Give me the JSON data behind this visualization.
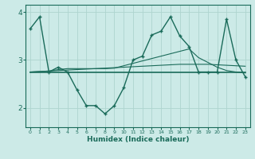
{
  "xlabel": "Humidex (Indice chaleur)",
  "bg_color": "#cceae7",
  "line_color": "#1a6b5a",
  "grid_color": "#aed4cf",
  "x": [
    0,
    1,
    2,
    3,
    4,
    5,
    6,
    7,
    8,
    9,
    10,
    11,
    12,
    13,
    14,
    15,
    16,
    17,
    18,
    19,
    20,
    21,
    22,
    23
  ],
  "y_main": [
    3.65,
    3.9,
    2.75,
    2.85,
    2.75,
    2.38,
    2.05,
    2.05,
    1.88,
    2.05,
    2.42,
    3.0,
    3.08,
    3.52,
    3.6,
    3.9,
    3.5,
    3.28,
    2.75,
    2.75,
    2.75,
    3.85,
    3.0,
    2.65
  ],
  "y_trend1": [
    2.75,
    2.75,
    2.75,
    2.75,
    2.75,
    2.75,
    2.75,
    2.75,
    2.75,
    2.75,
    2.75,
    2.75,
    2.75,
    2.75,
    2.75,
    2.75,
    2.75,
    2.75,
    2.75,
    2.75,
    2.75,
    2.75,
    2.75,
    2.75
  ],
  "y_trend2": [
    2.75,
    2.76,
    2.77,
    2.78,
    2.79,
    2.8,
    2.81,
    2.82,
    2.83,
    2.84,
    2.85,
    2.86,
    2.87,
    2.88,
    2.89,
    2.9,
    2.91,
    2.91,
    2.91,
    2.91,
    2.9,
    2.89,
    2.88,
    2.87
  ],
  "y_trend3": [
    2.75,
    2.76,
    2.77,
    2.8,
    2.82,
    2.82,
    2.82,
    2.82,
    2.82,
    2.83,
    2.88,
    2.93,
    2.98,
    3.03,
    3.08,
    3.13,
    3.18,
    3.23,
    3.05,
    2.95,
    2.85,
    2.78,
    2.75,
    2.73
  ],
  "ylim": [
    1.6,
    4.15
  ],
  "yticks": [
    2,
    3,
    4
  ],
  "xlim": [
    -0.5,
    23.5
  ]
}
